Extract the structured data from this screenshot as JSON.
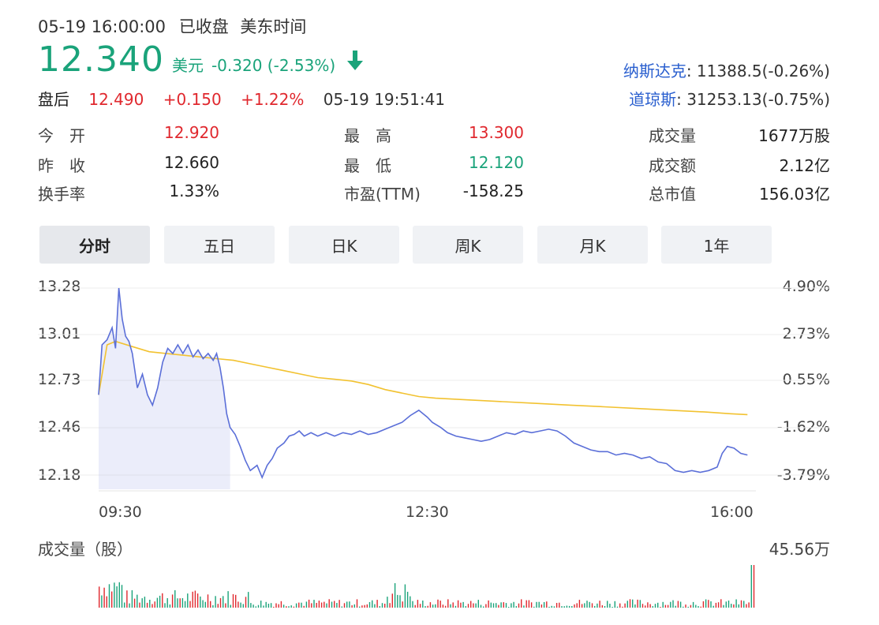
{
  "header": {
    "datetime": "05-19 16:00:00",
    "status": "已收盘",
    "tz": "美东时间",
    "price": "12.340",
    "currency": "美元",
    "change": "-0.320 (-2.53%)",
    "after_label": "盘后",
    "after_price": "12.490",
    "after_change": "+0.150",
    "after_pct": "+1.22%",
    "after_time": "05-19 19:51:41"
  },
  "indices": [
    {
      "name": "纳斯达克",
      "value": ": 11388.5(-0.26%)"
    },
    {
      "name": "道琼斯",
      "value": ": 31253.13(-0.75%)"
    }
  ],
  "stats": {
    "open_label": "今　开",
    "open": "12.920",
    "high_label": "最　高",
    "high": "13.300",
    "volume_label": "成交量",
    "volume": "1677万股",
    "prev_label": "昨　收",
    "prev": "12.660",
    "low_label": "最　低",
    "low": "12.120",
    "amount_label": "成交额",
    "amount": "2.12亿",
    "turnover_label": "换手率",
    "turnover": "1.33%",
    "pe_label": "市盈(TTM)",
    "pe": "-158.25",
    "mcap_label": "总市值",
    "mcap": "156.03亿"
  },
  "tabs": [
    "分时",
    "五日",
    "日K",
    "周K",
    "月K",
    "1年"
  ],
  "colors": {
    "price_line": "#5b6fd8",
    "avg_line": "#f2c230",
    "up": "#e0282e",
    "down": "#1aa37a"
  },
  "chart_data": {
    "type": "line",
    "yticks": [
      "13.28",
      "13.01",
      "12.73",
      "12.46",
      "12.18"
    ],
    "yticks_pct": [
      "4.90%",
      "2.73%",
      "0.55%",
      "-1.62%",
      "-3.79%"
    ],
    "xticks": [
      "09:30",
      "12:30",
      "16:00"
    ],
    "ylim": [
      12.18,
      13.28
    ],
    "x_range": [
      0,
      390
    ],
    "series": [
      {
        "values": [
          [
            0,
            12.66
          ],
          [
            2,
            12.95
          ],
          [
            5,
            12.98
          ],
          [
            8,
            13.05
          ],
          [
            10,
            12.93
          ],
          [
            12,
            13.28
          ],
          [
            14,
            13.1
          ],
          [
            16,
            13.0
          ],
          [
            18,
            12.97
          ],
          [
            20,
            12.9
          ],
          [
            23,
            12.7
          ],
          [
            26,
            12.78
          ],
          [
            29,
            12.66
          ],
          [
            32,
            12.6
          ],
          [
            35,
            12.7
          ],
          [
            38,
            12.85
          ],
          [
            41,
            12.93
          ],
          [
            44,
            12.9
          ],
          [
            47,
            12.95
          ],
          [
            50,
            12.9
          ],
          [
            53,
            12.95
          ],
          [
            56,
            12.88
          ],
          [
            59,
            12.92
          ],
          [
            62,
            12.87
          ],
          [
            65,
            12.9
          ],
          [
            68,
            12.86
          ],
          [
            70,
            12.9
          ],
          [
            72,
            12.82
          ],
          [
            74,
            12.7
          ],
          [
            76,
            12.55
          ],
          [
            78,
            12.47
          ],
          [
            81,
            12.43
          ],
          [
            84,
            12.36
          ],
          [
            87,
            12.28
          ],
          [
            90,
            12.22
          ],
          [
            94,
            12.25
          ],
          [
            97,
            12.18
          ],
          [
            100,
            12.25
          ],
          [
            103,
            12.29
          ],
          [
            106,
            12.35
          ],
          [
            110,
            12.38
          ],
          [
            113,
            12.42
          ],
          [
            116,
            12.43
          ],
          [
            119,
            12.45
          ],
          [
            122,
            12.42
          ],
          [
            126,
            12.44
          ],
          [
            130,
            12.42
          ],
          [
            135,
            12.44
          ],
          [
            140,
            12.42
          ],
          [
            145,
            12.44
          ],
          [
            150,
            12.43
          ],
          [
            155,
            12.45
          ],
          [
            160,
            12.43
          ],
          [
            165,
            12.44
          ],
          [
            170,
            12.46
          ],
          [
            175,
            12.48
          ],
          [
            180,
            12.5
          ],
          [
            185,
            12.54
          ],
          [
            190,
            12.57
          ],
          [
            195,
            12.53
          ],
          [
            198,
            12.5
          ],
          [
            203,
            12.47
          ],
          [
            207,
            12.44
          ],
          [
            212,
            12.42
          ],
          [
            217,
            12.41
          ],
          [
            222,
            12.4
          ],
          [
            227,
            12.39
          ],
          [
            232,
            12.4
          ],
          [
            237,
            12.42
          ],
          [
            242,
            12.44
          ],
          [
            247,
            12.43
          ],
          [
            252,
            12.45
          ],
          [
            257,
            12.44
          ],
          [
            262,
            12.45
          ],
          [
            267,
            12.46
          ],
          [
            272,
            12.45
          ],
          [
            277,
            12.42
          ],
          [
            282,
            12.38
          ],
          [
            287,
            12.36
          ],
          [
            292,
            12.34
          ],
          [
            297,
            12.33
          ],
          [
            302,
            12.33
          ],
          [
            307,
            12.31
          ],
          [
            312,
            12.32
          ],
          [
            317,
            12.31
          ],
          [
            322,
            12.29
          ],
          [
            327,
            12.3
          ],
          [
            332,
            12.27
          ],
          [
            337,
            12.26
          ],
          [
            342,
            12.22
          ],
          [
            347,
            12.21
          ],
          [
            352,
            12.22
          ],
          [
            357,
            12.21
          ],
          [
            362,
            12.22
          ],
          [
            367,
            12.24
          ],
          [
            370,
            12.32
          ],
          [
            373,
            12.36
          ],
          [
            377,
            12.35
          ],
          [
            381,
            12.32
          ],
          [
            385,
            12.31
          ]
        ]
      },
      {
        "values": [
          [
            0,
            12.66
          ],
          [
            5,
            12.95
          ],
          [
            10,
            12.97
          ],
          [
            20,
            12.94
          ],
          [
            30,
            12.91
          ],
          [
            40,
            12.9
          ],
          [
            50,
            12.89
          ],
          [
            60,
            12.88
          ],
          [
            70,
            12.87
          ],
          [
            80,
            12.86
          ],
          [
            90,
            12.84
          ],
          [
            100,
            12.82
          ],
          [
            110,
            12.8
          ],
          [
            120,
            12.78
          ],
          [
            130,
            12.76
          ],
          [
            140,
            12.75
          ],
          [
            150,
            12.74
          ],
          [
            160,
            12.72
          ],
          [
            170,
            12.69
          ],
          [
            180,
            12.67
          ],
          [
            190,
            12.65
          ],
          [
            200,
            12.64
          ],
          [
            220,
            12.63
          ],
          [
            240,
            12.62
          ],
          [
            260,
            12.61
          ],
          [
            280,
            12.6
          ],
          [
            300,
            12.59
          ],
          [
            320,
            12.58
          ],
          [
            340,
            12.57
          ],
          [
            360,
            12.56
          ],
          [
            375,
            12.55
          ],
          [
            385,
            12.545
          ]
        ]
      }
    ],
    "volume_label": "成交量（股）",
    "volume_max_label": "45.56万",
    "volume_max": 455600
  }
}
